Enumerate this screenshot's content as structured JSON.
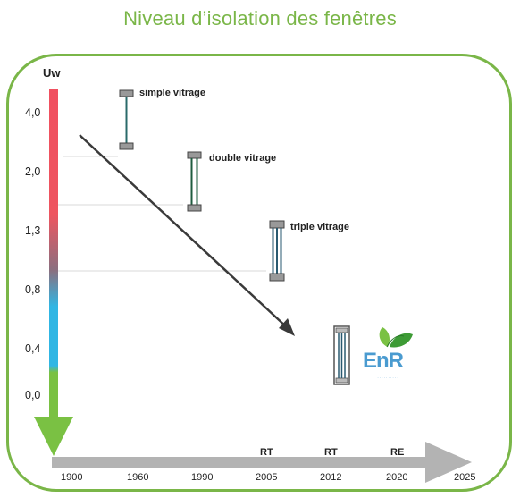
{
  "title": "Niveau d’isolation des fenêtres",
  "y_axis": {
    "label": "Uw",
    "ticks": [
      "4,0",
      "2,0",
      "1,3",
      "0,8",
      "0,4",
      "0,0"
    ]
  },
  "x_axis": {
    "years": [
      "1900",
      "1960",
      "1990",
      "2005",
      "2012",
      "2020",
      "2025"
    ],
    "regulations": [
      "RT",
      "RT",
      "RE"
    ]
  },
  "glazing": {
    "simple": "simple vitrage",
    "double": "double vitrage",
    "triple": "triple vitrage"
  },
  "logo": {
    "text": "EnR"
  },
  "colors": {
    "accent_green": "#7ab648",
    "gauge_red": "#f0505a",
    "gauge_blue": "#2db8e6",
    "gauge_green": "#7ac143",
    "arrow_grey": "#b3b3b3",
    "trend_arrow": "#3a3a3a"
  }
}
